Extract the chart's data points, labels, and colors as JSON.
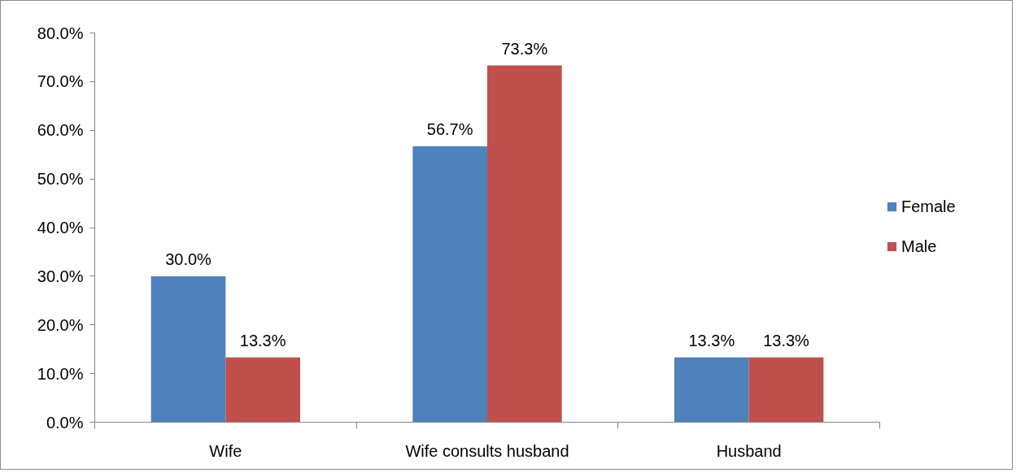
{
  "chart_data": {
    "type": "bar",
    "categories": [
      "Wife",
      "Wife consults husband",
      "Husband"
    ],
    "series": [
      {
        "name": "Female",
        "color": "#4f81bd",
        "values": [
          30.0,
          56.7,
          13.3
        ],
        "value_labels": [
          "30.0%",
          "56.7%",
          "13.3%"
        ]
      },
      {
        "name": "Male",
        "color": "#c0504d",
        "values": [
          13.3,
          73.3,
          13.3
        ],
        "value_labels": [
          "13.3%",
          "73.3%",
          "13.3%"
        ]
      }
    ],
    "ylim": [
      0,
      80
    ],
    "yticks": [
      {
        "value": 0,
        "label": "0.0%"
      },
      {
        "value": 10,
        "label": "10.0%"
      },
      {
        "value": 20,
        "label": "20.0%"
      },
      {
        "value": 30,
        "label": "30.0%"
      },
      {
        "value": 40,
        "label": "40.0%"
      },
      {
        "value": 50,
        "label": "50.0%"
      },
      {
        "value": 60,
        "label": "60.0%"
      },
      {
        "value": 70,
        "label": "70.0%"
      },
      {
        "value": 80,
        "label": "80.0%"
      }
    ],
    "grid": false,
    "legend": "right"
  }
}
